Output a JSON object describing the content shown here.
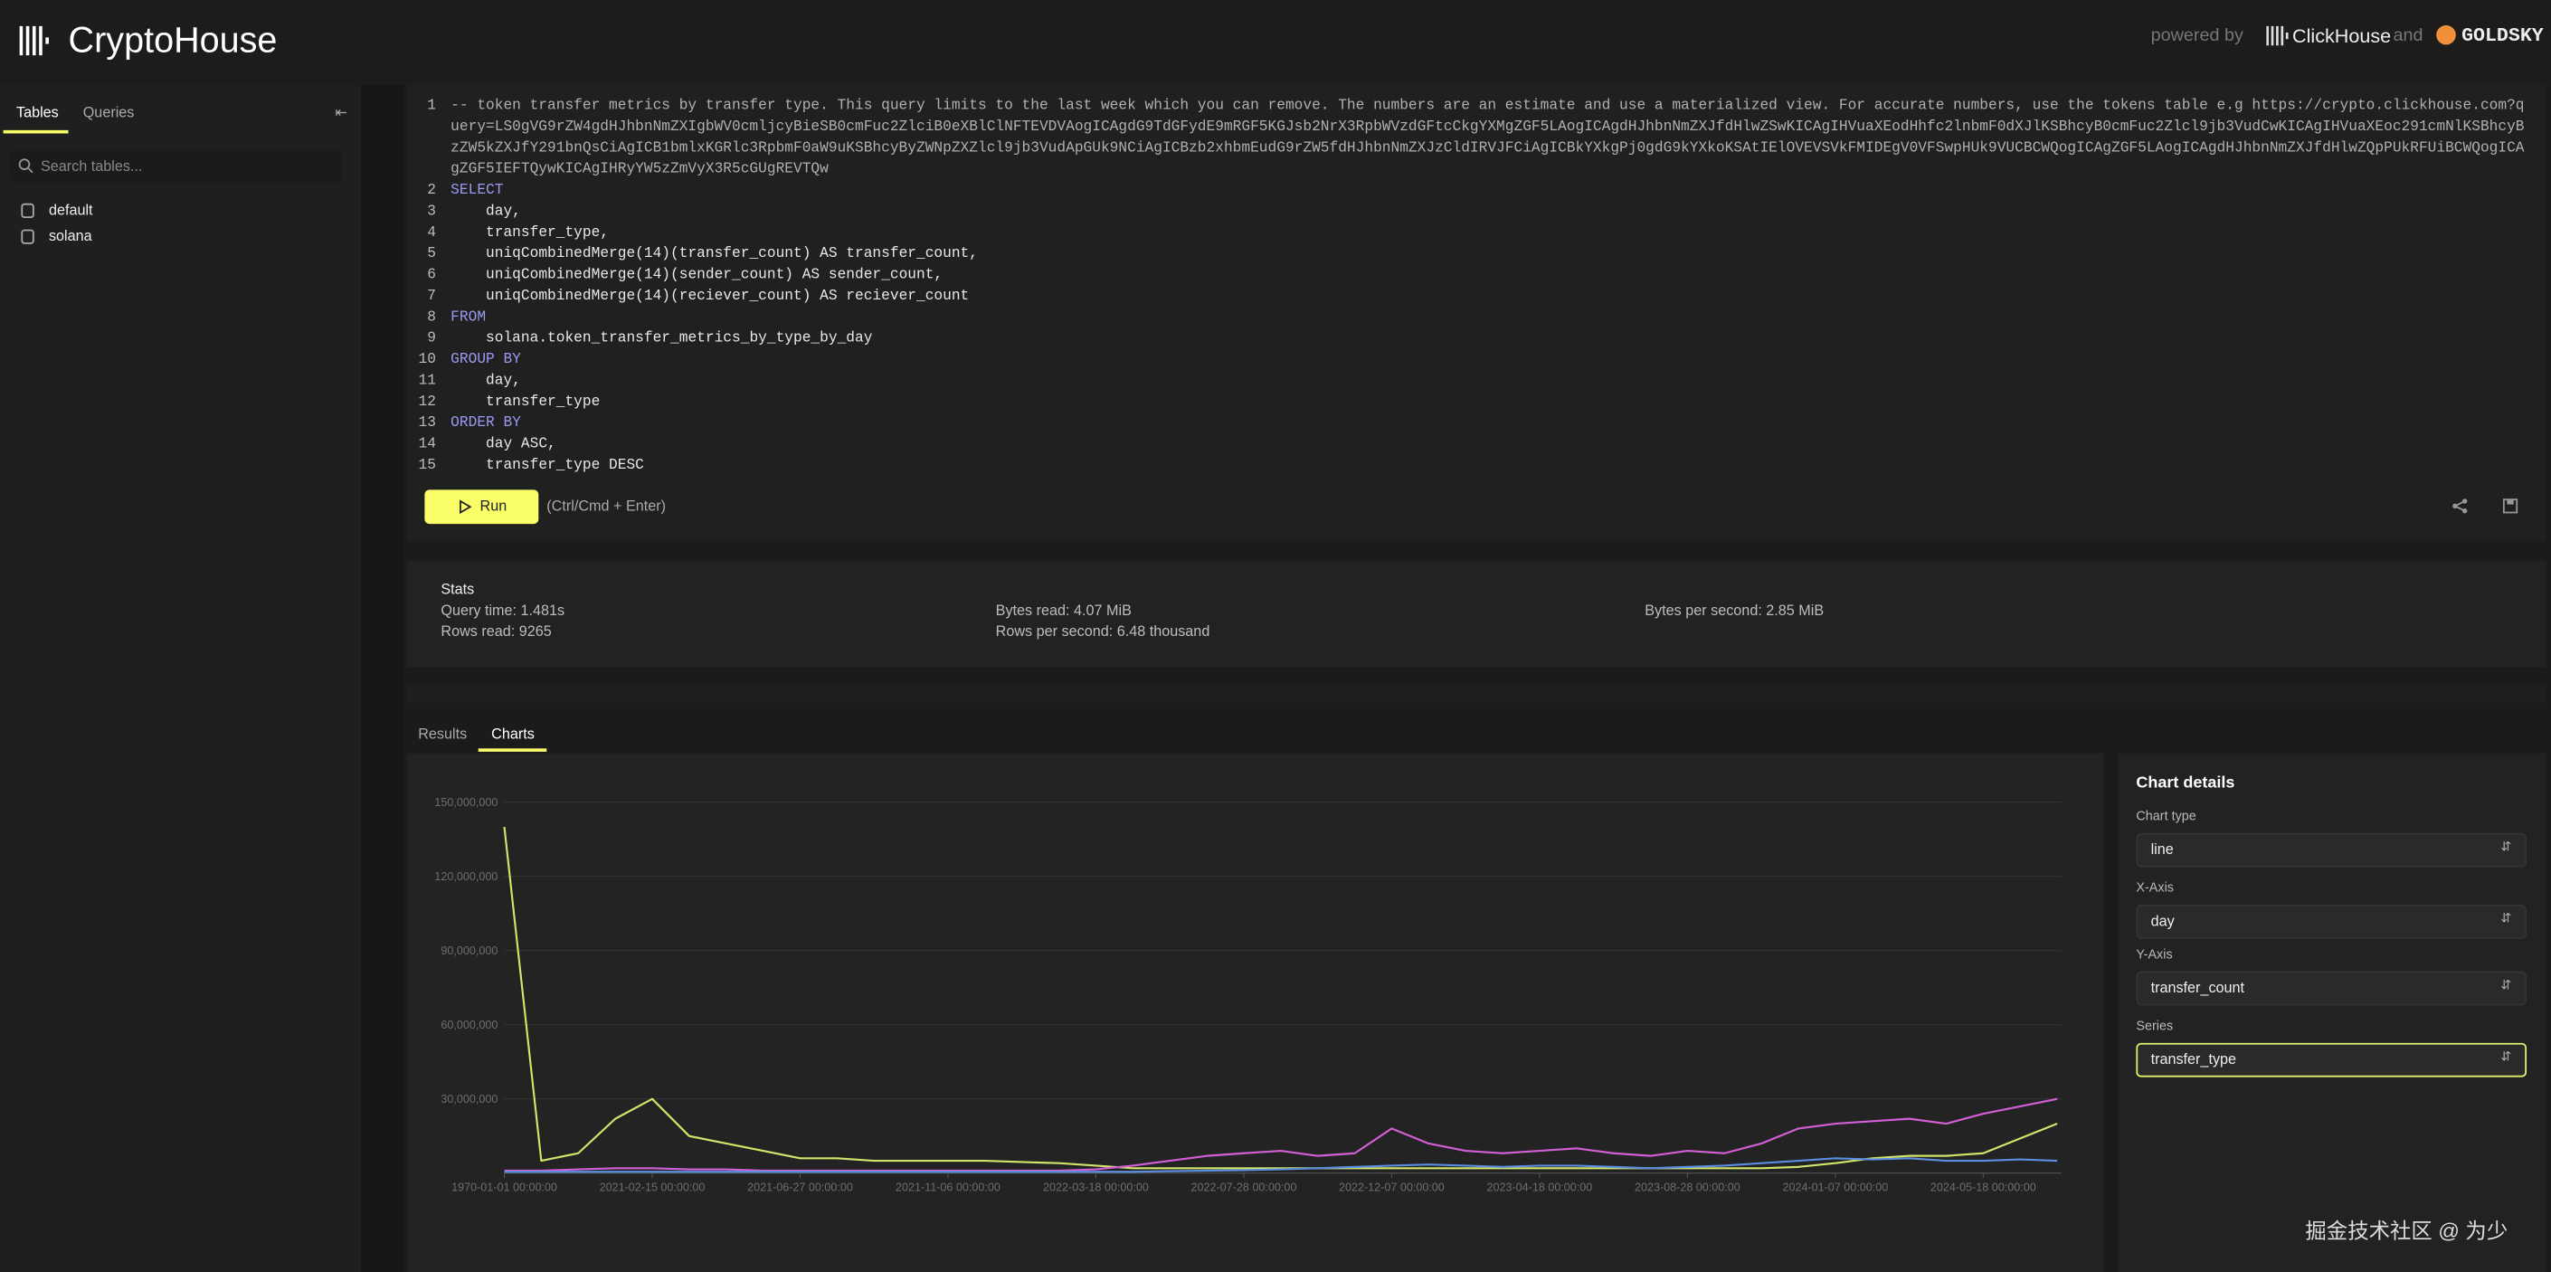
{
  "header": {
    "brand": "CryptoHouse",
    "powered": "powered by",
    "partner1": "ClickHouse",
    "and": "and",
    "partner2": "GOLDSKY"
  },
  "sidebar": {
    "tabs": [
      "Tables",
      "Queries"
    ],
    "search_placeholder": "Search tables...",
    "tables": [
      "default",
      "solana"
    ]
  },
  "editor": {
    "lines": [
      {
        "n": 1,
        "text": "-- token transfer metrics by transfer type. This query limits to the last week which you can remove. The numbers are an estimate and use a materialized view. For accurate numbers, use the tokens table e.g https://crypto.clickhouse.com?query=LS0gVG9rZW4gdHJhbnNmZXIgbWV0cmljcyBieSB0cmFuc2ZlciB0eXBlClNFTEVDVAogICAgdG9TdGFydE9mRGF5KGJsb2NrX3RpbWVzdGFtcCkgYXMgZGF5LAogICAgdHJhbnNmZXJfdHlwZSwKICAgIHVuaXEodHhfc2lnbmF0dXJlKSBhcyB0cmFuc2Zlcl9jb3VudCwKICAgIHVuaXEoc291cmNlKSBhcyBzZW5kZXJfY291bnQsCiAgICB1bmlxKGRlc3RpbmF0aW9uKSBhcyByZWNpZXZlcl9jb3VudApGUk9NCiAgICBzb2xhbmEudG9rZW5fdHJhbnNmZXJzCldIRVJFCiAgICBkYXkgPj0gdG9kYXkoKSAtIElOVEVSVkFMIDEgV0VFSwpHUk9VUCBCWQogICAgZGF5LAogICAgdHJhbnNmZXJfdHlwZQpPUkRFUiBCWQogICAgZGF5IEFTQywKICAgIHRyYW5zZmVyX3R5cGUgREVTQw",
        "kind": "comment"
      },
      {
        "n": 2,
        "text": "SELECT",
        "kind": "keyword"
      },
      {
        "n": 3,
        "text": "    day,",
        "kind": "code"
      },
      {
        "n": 4,
        "text": "    transfer_type,",
        "kind": "code"
      },
      {
        "n": 5,
        "text": "    uniqCombinedMerge(14)(transfer_count) AS transfer_count,",
        "kind": "code"
      },
      {
        "n": 6,
        "text": "    uniqCombinedMerge(14)(sender_count) AS sender_count,",
        "kind": "code"
      },
      {
        "n": 7,
        "text": "    uniqCombinedMerge(14)(reciever_count) AS reciever_count",
        "kind": "code"
      },
      {
        "n": 8,
        "text": "FROM",
        "kind": "keyword"
      },
      {
        "n": 9,
        "text": "    solana.token_transfer_metrics_by_type_by_day",
        "kind": "code"
      },
      {
        "n": 10,
        "text": "GROUP BY",
        "kind": "keyword"
      },
      {
        "n": 11,
        "text": "    day,",
        "kind": "code"
      },
      {
        "n": 12,
        "text": "    transfer_type",
        "kind": "code"
      },
      {
        "n": 13,
        "text": "ORDER BY",
        "kind": "keyword"
      },
      {
        "n": 14,
        "text": "    day ASC,",
        "kind": "code"
      },
      {
        "n": 15,
        "text": "    transfer_type DESC",
        "kind": "code"
      }
    ],
    "run": "Run",
    "hint": "(Ctrl/Cmd + Enter)"
  },
  "stats": {
    "title": "Stats",
    "items": [
      "Query time: 1.481s",
      "Rows read: 9265",
      "Bytes read: 4.07 MiB",
      "Rows per second: 6.48 thousand",
      "Bytes per second: 2.85 MiB"
    ]
  },
  "result_tabs": [
    "Results",
    "Charts"
  ],
  "chart_data": {
    "type": "line",
    "categories": [
      "1970-01-01 00:00:00",
      null,
      null,
      null,
      "2021-02-15 00:00:00",
      null,
      null,
      null,
      "2021-06-27 00:00:00",
      null,
      null,
      null,
      "2021-11-06 00:00:00",
      null,
      null,
      null,
      "2022-03-18 00:00:00",
      null,
      null,
      null,
      "2022-07-28 00:00:00",
      null,
      null,
      null,
      "2022-12-07 00:00:00",
      null,
      null,
      null,
      "2023-04-18 00:00:00",
      null,
      null,
      null,
      "2023-08-28 00:00:00",
      null,
      null,
      null,
      "2024-01-07 00:00:00",
      null,
      null,
      null,
      "2024-05-18 00:00:00",
      null,
      null
    ],
    "ylim": [
      0,
      150000000
    ],
    "yticks": [
      {
        "value": 30000000,
        "label": "30,000,000"
      },
      {
        "value": 60000000,
        "label": "60,000,000"
      },
      {
        "value": 90000000,
        "label": "90,000,000"
      },
      {
        "value": 120000000,
        "label": "120,000,000"
      },
      {
        "value": 150000000,
        "label": "150,000,000"
      }
    ],
    "grid": true,
    "series": [
      {
        "color": "#d4e46a",
        "values": [
          140000000,
          5000000,
          8000000,
          22000000,
          30000000,
          15000000,
          12000000,
          9000000,
          6000000,
          6000000,
          5000000,
          5000000,
          5000000,
          5000000,
          4500000,
          4000000,
          3000000,
          2000000,
          2000000,
          2000000,
          2000000,
          2000000,
          2000000,
          2000000,
          2000000,
          2000000,
          2000000,
          2000000,
          2000000,
          2000000,
          2000000,
          2000000,
          2000000,
          2000000,
          2000000,
          2500000,
          4000000,
          6000000,
          7000000,
          7000000,
          8000000,
          14000000,
          20000000
        ]
      },
      {
        "color": "#d35fd6",
        "values": [
          1000000,
          1000000,
          1500000,
          2000000,
          2000000,
          1500000,
          1500000,
          1000000,
          1000000,
          1000000,
          1000000,
          1000000,
          1000000,
          1000000,
          1000000,
          1000000,
          1500000,
          3000000,
          5000000,
          7000000,
          8000000,
          9000000,
          7000000,
          8000000,
          18000000,
          12000000,
          9000000,
          8000000,
          9000000,
          10000000,
          8000000,
          7000000,
          9000000,
          8000000,
          12000000,
          18000000,
          20000000,
          21000000,
          22000000,
          20000000,
          24000000,
          27000000,
          30000000
        ]
      },
      {
        "color": "#5b8ee0",
        "values": [
          500000,
          500000,
          500000,
          500000,
          500000,
          500000,
          500000,
          500000,
          500000,
          500000,
          500000,
          500000,
          500000,
          500000,
          500000,
          500000,
          500000,
          500000,
          800000,
          1000000,
          1200000,
          1500000,
          2000000,
          2500000,
          3000000,
          3500000,
          3000000,
          2500000,
          3000000,
          3000000,
          2500000,
          2000000,
          2500000,
          3000000,
          4000000,
          5000000,
          6000000,
          5500000,
          6000000,
          5000000,
          5000000,
          5500000,
          5000000
        ]
      }
    ]
  },
  "details": {
    "title": "Chart details",
    "fields": [
      {
        "label": "Chart type",
        "value": "line"
      },
      {
        "label": "X-Axis",
        "value": "day"
      },
      {
        "label": "Y-Axis",
        "value": "transfer_count"
      },
      {
        "label": "Series",
        "value": "transfer_type"
      }
    ]
  },
  "watermark": "掘金技术社区 @ 为少"
}
